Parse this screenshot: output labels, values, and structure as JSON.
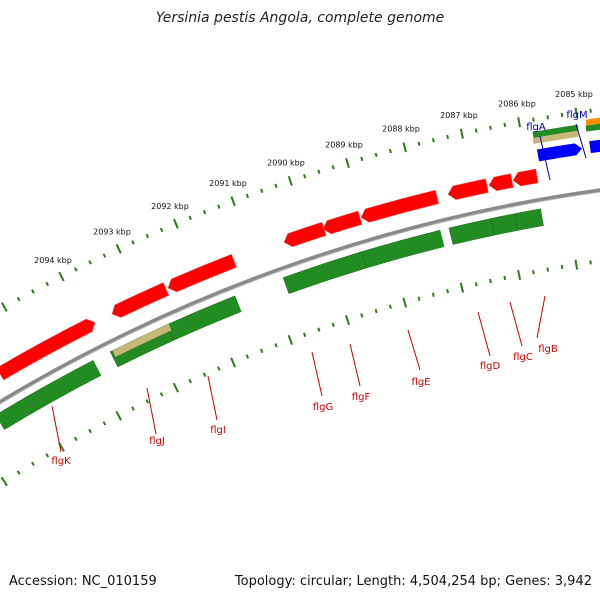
{
  "title": "Yersinia pestis Angola, complete genome",
  "accession": "Accession: NC_010159",
  "summary": "Topology: circular; Length: 4,504,254 bp; Genes: 3,942",
  "colors": {
    "backbone": "#8a8a8a",
    "tick": "#2e7d1f",
    "cds_red": "#ff0000",
    "cds_green": "#228b22",
    "cds_blue": "#0000ff",
    "cds_khaki": "#c8b878",
    "cds_orange": "#ff8c00",
    "label_red": "#cc0000",
    "label_blue": "#0000aa"
  },
  "kbp_labels": [
    "2085 kbp",
    "2086 kbp",
    "2087 kbp",
    "2088 kbp",
    "2089 kbp",
    "2090 kbp",
    "2091 kbp",
    "2092 kbp",
    "2093 kbp",
    "2094 kbp"
  ],
  "genes": [
    {
      "name": "flgM",
      "color": "label_blue"
    },
    {
      "name": "flgA",
      "color": "label_blue"
    },
    {
      "name": "flgB",
      "color": "label_red"
    },
    {
      "name": "flgC",
      "color": "label_red"
    },
    {
      "name": "flgD",
      "color": "label_red"
    },
    {
      "name": "flgE",
      "color": "label_red"
    },
    {
      "name": "flgF",
      "color": "label_red"
    },
    {
      "name": "flgG",
      "color": "label_red"
    },
    {
      "name": "flgI",
      "color": "label_red"
    },
    {
      "name": "flgJ",
      "color": "label_red"
    },
    {
      "name": "flgK",
      "color": "label_red"
    }
  ]
}
